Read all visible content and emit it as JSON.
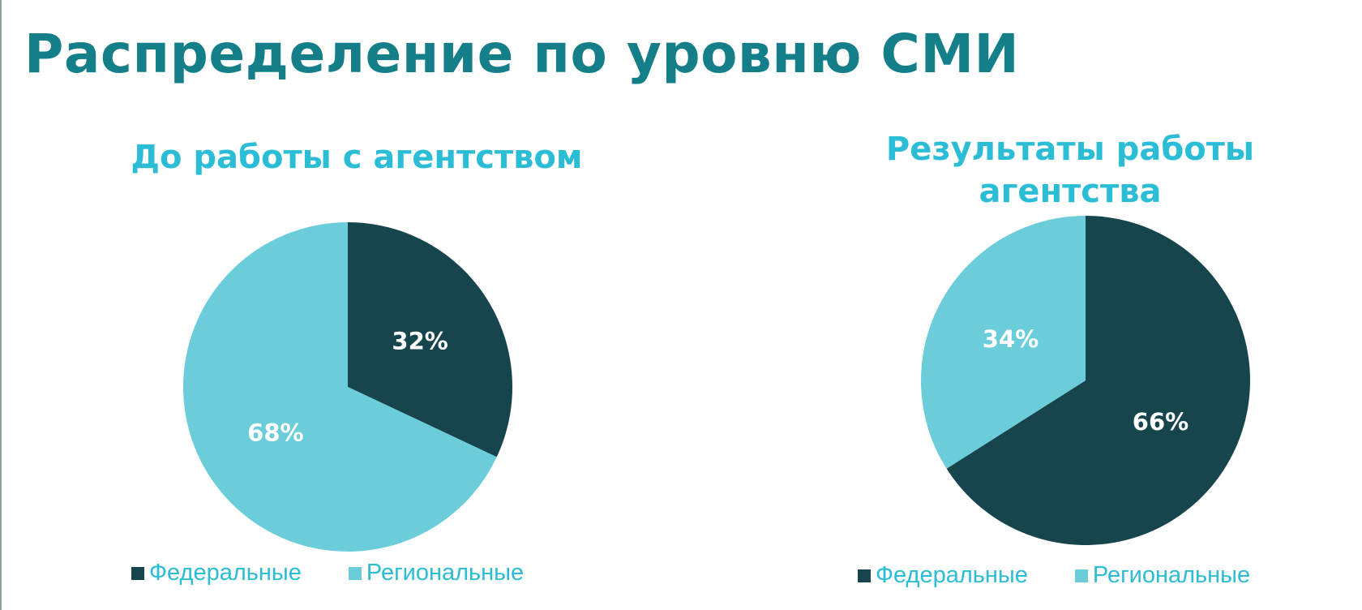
{
  "title": "Распределение по уровню СМИ",
  "colors": {
    "title": "#147f88",
    "chart_title": "#2bbcd6",
    "legend_text": "#2bbcd6",
    "federal": "#17454d",
    "regional": "#6bcdd9"
  },
  "chart_data": [
    {
      "type": "pie",
      "title": "До работы с агентством",
      "title_lines": [
        "До работы с агентством"
      ],
      "slices": [
        {
          "name": "Федеральные",
          "value": 32,
          "label": "32%"
        },
        {
          "name": "Региональные",
          "value": 68,
          "label": "68%"
        }
      ],
      "legend": [
        "Федеральные",
        "Региональные"
      ],
      "legend_position": "bottom"
    },
    {
      "type": "pie",
      "title": "Результаты работы агентства",
      "title_lines": [
        "Результаты работы",
        "агентства"
      ],
      "slices": [
        {
          "name": "Федеральные",
          "value": 66,
          "label": "66%"
        },
        {
          "name": "Региональные",
          "value": 34,
          "label": "34%"
        }
      ],
      "legend": [
        "Федеральные",
        "Региональные"
      ],
      "legend_position": "bottom"
    }
  ]
}
